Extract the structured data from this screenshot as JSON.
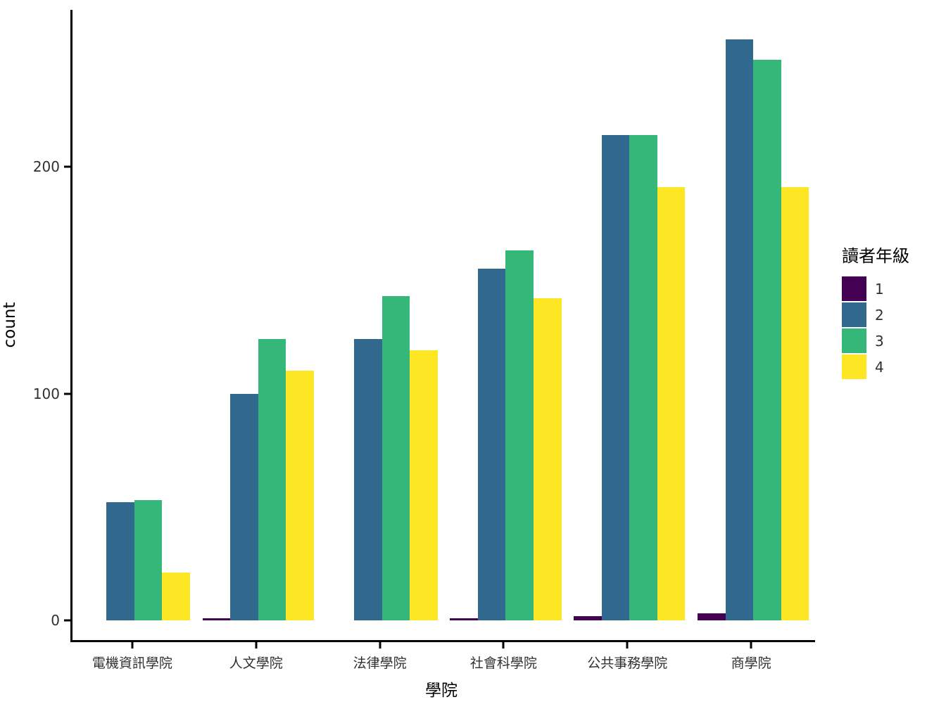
{
  "chart_data": {
    "type": "bar",
    "title": "",
    "xlabel": "學院",
    "ylabel": "count",
    "categories": [
      "電機資訊學院",
      "人文學院",
      "法律學院",
      "社會科學院",
      "公共事務學院",
      "商學院"
    ],
    "series": [
      {
        "name": "1",
        "color": "#440154",
        "values": [
          0,
          1,
          0,
          1,
          2,
          3
        ]
      },
      {
        "name": "2",
        "color": "#31688E",
        "values": [
          52,
          100,
          124,
          155,
          214,
          256
        ]
      },
      {
        "name": "3",
        "color": "#35B779",
        "values": [
          53,
          124,
          143,
          163,
          214,
          247
        ]
      },
      {
        "name": "4",
        "color": "#FDE725",
        "values": [
          21,
          110,
          119,
          142,
          191,
          191
        ]
      }
    ],
    "y_ticks": [
      0,
      100,
      200
    ],
    "ylim": [
      0,
      262
    ],
    "grid": false,
    "legend_title": "讀者年級",
    "legend_position": "right",
    "legend_labels": [
      "1",
      "2",
      "3",
      "4"
    ],
    "axis_color": "#000000"
  }
}
